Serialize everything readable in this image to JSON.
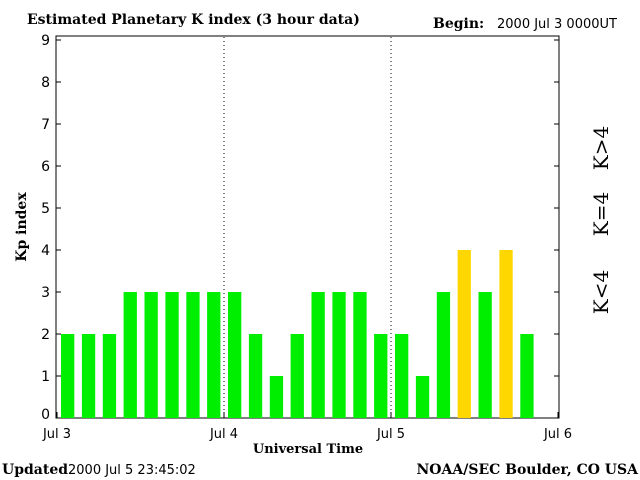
{
  "header": {
    "title": "Estimated Planetary K index (3 hour data)",
    "begin_label": "Begin:",
    "begin_value": "2000 Jul 3 0000UT"
  },
  "footer": {
    "updated_label": "Updated",
    "updated_value": "2000 Jul  5 23:45:02",
    "credit": "NOAA/SEC Boulder, CO USA"
  },
  "chart_data": {
    "type": "bar",
    "title": "Estimated Planetary K index (3 hour data)",
    "xlabel": "Universal Time",
    "ylabel": "Kp index",
    "ylim": [
      0,
      9
    ],
    "yticks": [
      0,
      1,
      2,
      3,
      4,
      5,
      6,
      7,
      8,
      9
    ],
    "x_tick_labels": [
      "Jul 3",
      "Jul 4",
      "Jul 5",
      "Jul 6"
    ],
    "day_dividers": [
      "Jul 4",
      "Jul 5"
    ],
    "values": [
      2,
      2,
      2,
      3,
      3,
      3,
      3,
      3,
      3,
      2,
      1,
      2,
      3,
      3,
      3,
      2,
      2,
      1,
      3,
      4,
      3,
      4,
      2
    ],
    "legend": [
      {
        "label": "K<4",
        "color": "#00ee00"
      },
      {
        "label": "K=4",
        "color": "#ffd700"
      },
      {
        "label": "K>4",
        "color": "#ff0000"
      }
    ],
    "legend_placement": "right",
    "colors": {
      "below_4": "#00ee00",
      "equal_4": "#ffd700",
      "above_4": "#ff0000"
    }
  }
}
